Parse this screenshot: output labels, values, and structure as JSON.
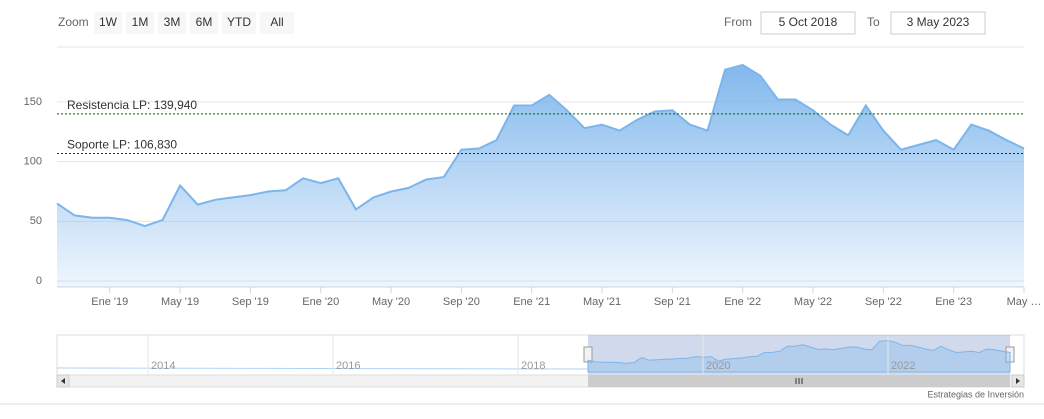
{
  "chart_data": {
    "type": "area",
    "range_selector": {
      "label": "Zoom",
      "buttons": [
        "1W",
        "1M",
        "3M",
        "6M",
        "YTD",
        "All"
      ],
      "from_label": "From",
      "from": "5 Oct 2018",
      "to_label": "To",
      "to": "3 May 2023"
    },
    "credits": "Estrategias de Inversión",
    "x": [
      "2018-10",
      "2018-11",
      "2018-12",
      "2019-01",
      "2019-02",
      "2019-03",
      "2019-04",
      "2019-05",
      "2019-06",
      "2019-07",
      "2019-08",
      "2019-09",
      "2019-10",
      "2019-11",
      "2019-12",
      "2020-01",
      "2020-02",
      "2020-03",
      "2020-04",
      "2020-05",
      "2020-06",
      "2020-07",
      "2020-08",
      "2020-09",
      "2020-10",
      "2020-11",
      "2020-12",
      "2021-01",
      "2021-02",
      "2021-03",
      "2021-04",
      "2021-05",
      "2021-06",
      "2021-07",
      "2021-08",
      "2021-09",
      "2021-10",
      "2021-11",
      "2021-12",
      "2022-01",
      "2022-02",
      "2022-03",
      "2022-04",
      "2022-05",
      "2022-06",
      "2022-07",
      "2022-08",
      "2022-09",
      "2022-10",
      "2022-11",
      "2022-12",
      "2023-01",
      "2023-02",
      "2023-03",
      "2023-04",
      "2023-05"
    ],
    "values": [
      65,
      55,
      53,
      53,
      51,
      46,
      51,
      80,
      64,
      68,
      70,
      72,
      75,
      76,
      86,
      82,
      86,
      60,
      70,
      75,
      78,
      85,
      87,
      110,
      111,
      118,
      147,
      147,
      156,
      143,
      128,
      131,
      126,
      135,
      142,
      143,
      131,
      126,
      177,
      181,
      172,
      152,
      152,
      143,
      131,
      122,
      147,
      126,
      110,
      114,
      118,
      110,
      131,
      126,
      118,
      111
    ],
    "color": "#7cb5ec",
    "xlim": [
      "2018-10",
      "2023-05"
    ],
    "xticks": [
      {
        "value": "2019-01",
        "label": "Ene '19"
      },
      {
        "value": "2019-05",
        "label": "May '19"
      },
      {
        "value": "2019-09",
        "label": "Sep '19"
      },
      {
        "value": "2020-01",
        "label": "Ene '20"
      },
      {
        "value": "2020-05",
        "label": "May '20"
      },
      {
        "value": "2020-09",
        "label": "Sep '20"
      },
      {
        "value": "2021-01",
        "label": "Ene '21"
      },
      {
        "value": "2021-05",
        "label": "May '21"
      },
      {
        "value": "2021-09",
        "label": "Sep '21"
      },
      {
        "value": "2022-01",
        "label": "Ene '22"
      },
      {
        "value": "2022-05",
        "label": "May '22"
      },
      {
        "value": "2022-09",
        "label": "Sep '22"
      },
      {
        "value": "2023-01",
        "label": "Ene '23"
      },
      {
        "value": "2023-05",
        "label": "May …"
      }
    ],
    "ylim": [
      -5,
      196
    ],
    "yticks": [
      0,
      50,
      100,
      150
    ],
    "grid": true,
    "plot_lines": [
      {
        "label": "Resistencia LP: 139,940",
        "value": 139.94,
        "color": "#006400"
      },
      {
        "label": "Soporte LP: 106,830",
        "value": 106.83,
        "color": "#8b0000"
      }
    ],
    "navigator_labels": [
      "2014",
      "2016",
      "2018",
      "2020",
      "2022"
    ]
  }
}
